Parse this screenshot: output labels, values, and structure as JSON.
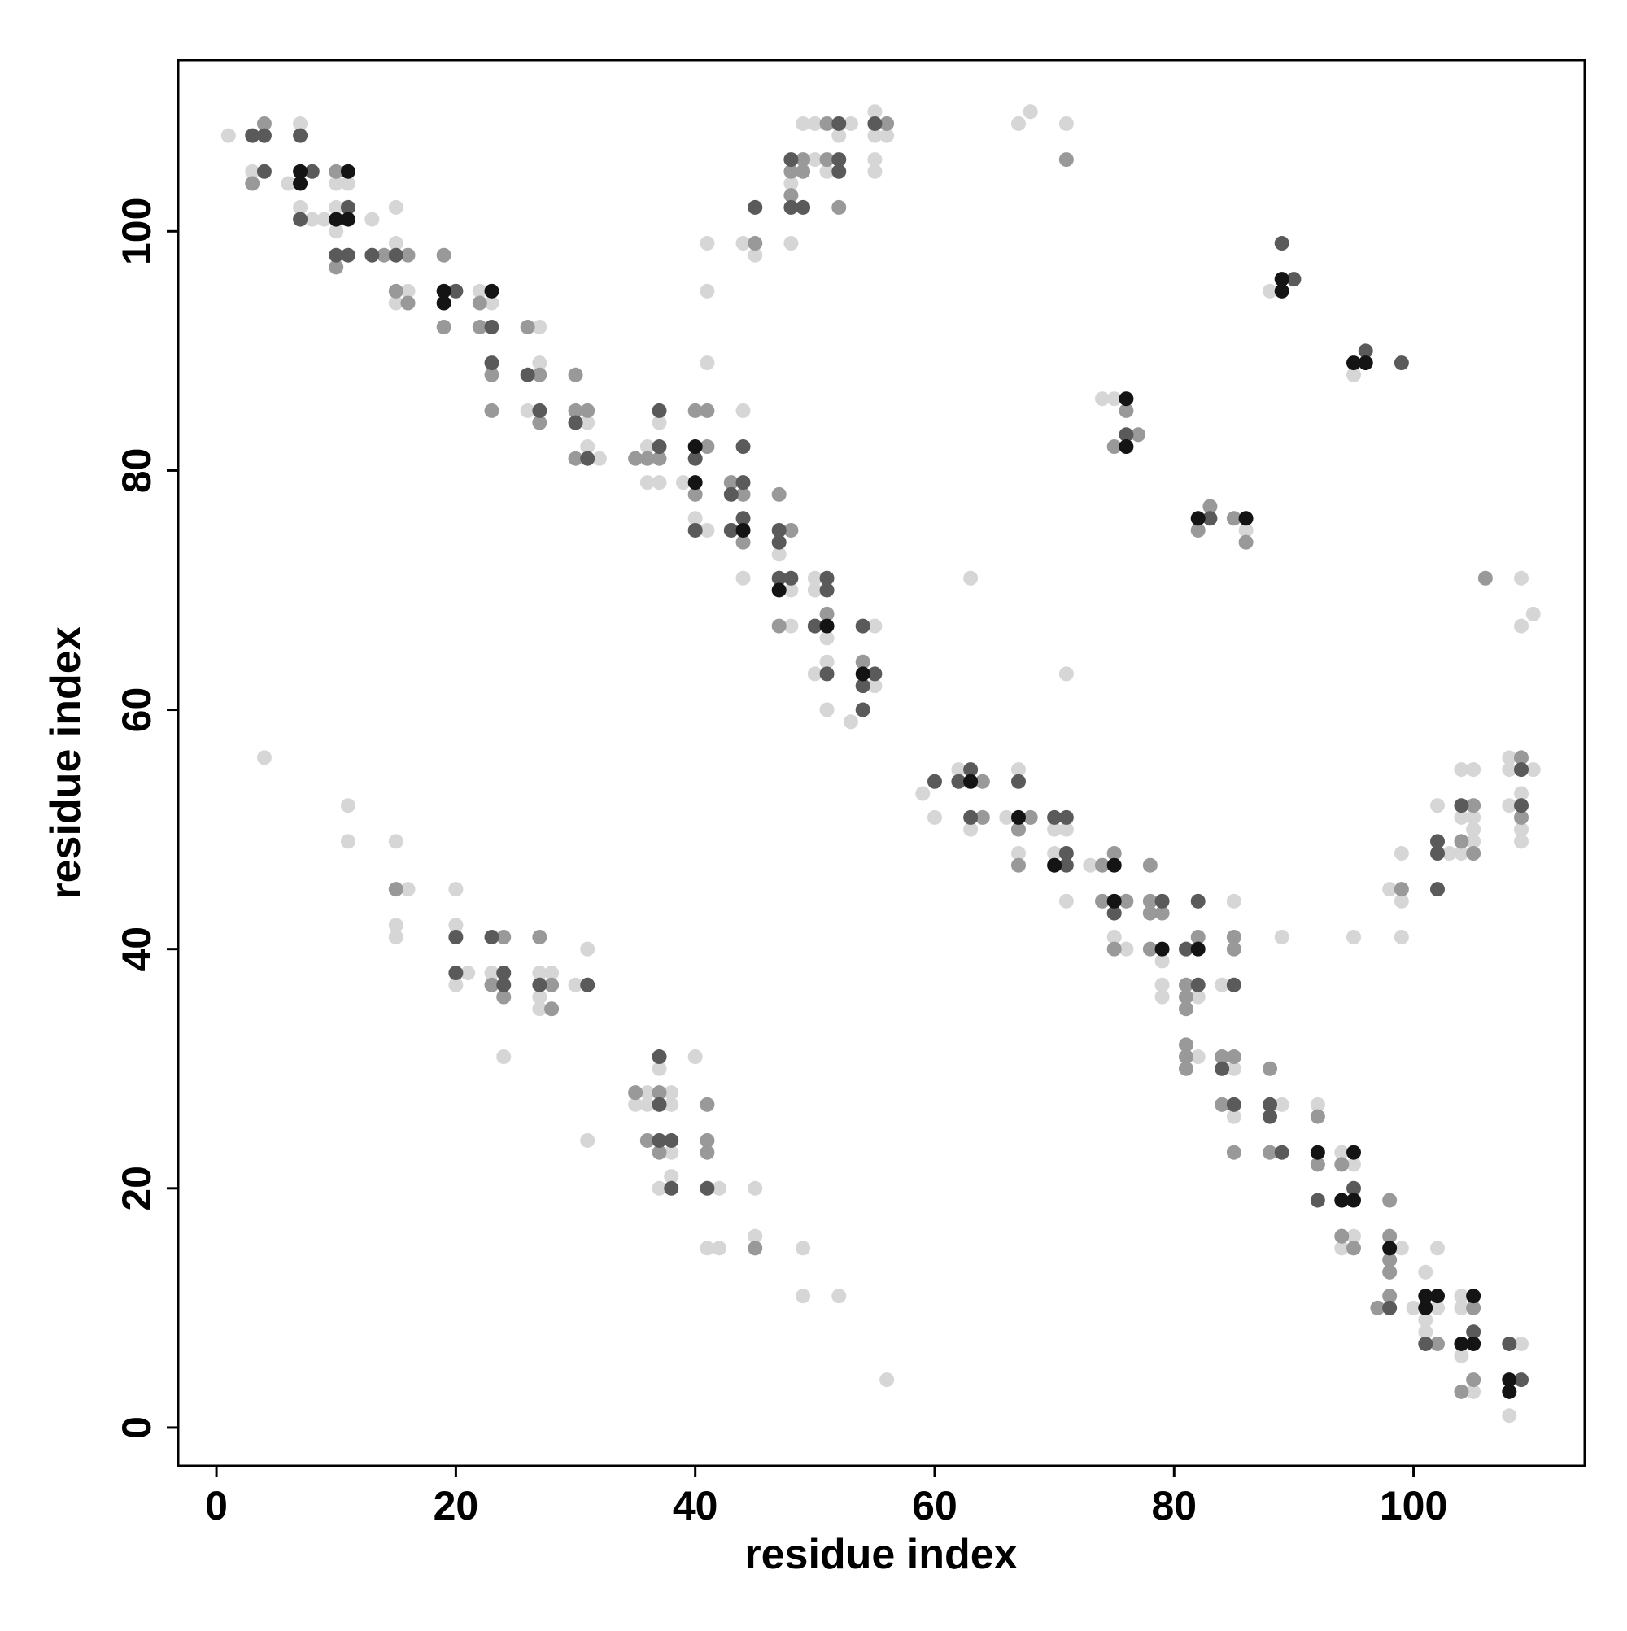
{
  "chart_data": {
    "type": "scatter",
    "xlabel": "residue index",
    "ylabel": "residue index",
    "xlim": [
      -3.2,
      114.3
    ],
    "ylim": [
      -3.2,
      114.3
    ],
    "xticks": [
      0,
      20,
      40,
      60,
      80,
      100
    ],
    "yticks": [
      0,
      20,
      40,
      60,
      80,
      100
    ],
    "grid": false,
    "series": [
      {
        "color": "#d6d6d6",
        "x": [
          1,
          3,
          6,
          7,
          7,
          8,
          9,
          10,
          11,
          10,
          10,
          13,
          15,
          15,
          15,
          16,
          22,
          23,
          27,
          27,
          26,
          31,
          31,
          32,
          36,
          37,
          36,
          37,
          39,
          40,
          41,
          44,
          44,
          47,
          48,
          48,
          50,
          50,
          51,
          51,
          50,
          51,
          53,
          55,
          55,
          41,
          41,
          41,
          44,
          45,
          48,
          48,
          49,
          50,
          50,
          53,
          51,
          52,
          55,
          55,
          56,
          55,
          55,
          67,
          68,
          71,
          88,
          95,
          74,
          75,
          86,
          63,
          71,
          109,
          110,
          109,
          59,
          60,
          62,
          63,
          66,
          67,
          67,
          70,
          71,
          70,
          71,
          73,
          75,
          76,
          79,
          79,
          79,
          82,
          82,
          84,
          85,
          85,
          85,
          89,
          92,
          94,
          95,
          95,
          94,
          99,
          100,
          102,
          101,
          102,
          101,
          101,
          104,
          104,
          104,
          105,
          109,
          108,
          95,
          89,
          98,
          99,
          99,
          99,
          102,
          103,
          104,
          105,
          104,
          105,
          105,
          104,
          105,
          108,
          108,
          110,
          109,
          108,
          109,
          109,
          4,
          11,
          11,
          15,
          16,
          15,
          15,
          20,
          20,
          21,
          20,
          23,
          24,
          27,
          28,
          27,
          27,
          30,
          31,
          31,
          36,
          38,
          35,
          36,
          38,
          37,
          38,
          38,
          37,
          40,
          42,
          45,
          45,
          41,
          42,
          49,
          49,
          52,
          56
        ],
        "values": [
          108,
          105,
          104,
          109,
          102,
          101,
          101,
          104,
          104,
          102,
          100,
          101,
          99,
          102,
          94,
          95,
          95,
          94,
          92,
          89,
          85,
          84,
          82,
          81,
          82,
          84,
          79,
          79,
          79,
          76,
          75,
          85,
          71,
          73,
          70,
          67,
          71,
          70,
          66,
          64,
          63,
          60,
          59,
          67,
          62,
          99,
          95,
          89,
          99,
          98,
          99,
          104,
          109,
          109,
          106,
          109,
          105,
          108,
          110,
          108,
          108,
          106,
          105,
          109,
          110,
          109,
          95,
          88,
          86,
          86,
          75,
          71,
          63,
          71,
          68,
          67,
          53,
          51,
          55,
          50,
          51,
          55,
          48,
          50,
          50,
          48,
          44,
          47,
          41,
          40,
          39,
          37,
          36,
          36,
          31,
          37,
          44,
          30,
          26,
          27,
          27,
          23,
          22,
          16,
          15,
          15,
          10,
          10,
          13,
          15,
          9,
          8,
          11,
          10,
          6,
          3,
          7,
          1,
          41,
          41,
          45,
          44,
          48,
          41,
          52,
          48,
          55,
          55,
          51,
          51,
          49,
          48,
          50,
          56,
          55,
          55,
          53,
          52,
          50,
          49,
          56,
          52,
          49,
          49,
          45,
          42,
          41,
          45,
          42,
          38,
          37,
          38,
          31,
          38,
          38,
          36,
          35,
          37,
          40,
          24,
          28,
          28,
          27,
          27,
          27,
          30,
          23,
          21,
          20,
          31,
          20,
          20,
          16,
          15,
          15,
          15,
          11,
          11,
          4
        ]
      },
      {
        "color": "#999999",
        "x": [
          4,
          3,
          10,
          10,
          14,
          16,
          15,
          16,
          19,
          19,
          22,
          22,
          23,
          23,
          26,
          27,
          27,
          30,
          30,
          31,
          30,
          35,
          36,
          37,
          40,
          40,
          41,
          41,
          43,
          44,
          44,
          47,
          48,
          47,
          51,
          54,
          45,
          48,
          48,
          49,
          49,
          51,
          51,
          52,
          56,
          71,
          76,
          77,
          75,
          83,
          82,
          85,
          86,
          106,
          64,
          64,
          68,
          67,
          67,
          74,
          75,
          74,
          76,
          75,
          78,
          78,
          78,
          79,
          78,
          82,
          81,
          81,
          81,
          81,
          81,
          81,
          85,
          85,
          84,
          85,
          84,
          85,
          88,
          88,
          92,
          92,
          94,
          94,
          95,
          98,
          98,
          98,
          98,
          97,
          98,
          102,
          105,
          105,
          104,
          99,
          105,
          104,
          105,
          109,
          109,
          15,
          24,
          23,
          24,
          27,
          28,
          28,
          35,
          37,
          36,
          37,
          41,
          41,
          41,
          45
        ],
        "values": [
          109,
          104,
          105,
          97,
          98,
          98,
          95,
          94,
          98,
          92,
          94,
          92,
          88,
          85,
          92,
          88,
          84,
          88,
          85,
          85,
          81,
          81,
          81,
          81,
          78,
          85,
          85,
          82,
          79,
          78,
          74,
          78,
          75,
          67,
          68,
          64,
          99,
          103,
          105,
          106,
          105,
          109,
          106,
          102,
          109,
          106,
          85,
          83,
          82,
          77,
          75,
          76,
          74,
          71,
          54,
          51,
          51,
          50,
          47,
          47,
          48,
          44,
          44,
          40,
          47,
          44,
          43,
          43,
          40,
          41,
          37,
          36,
          35,
          32,
          31,
          30,
          41,
          40,
          31,
          31,
          27,
          23,
          30,
          23,
          26,
          22,
          22,
          16,
          15,
          19,
          16,
          14,
          13,
          10,
          11,
          7,
          10,
          4,
          3,
          45,
          52,
          49,
          48,
          56,
          51,
          45,
          41,
          37,
          36,
          41,
          37,
          35,
          28,
          28,
          24,
          23,
          27,
          24,
          23,
          15
        ]
      },
      {
        "color": "#5a5a5a",
        "x": [
          3,
          4,
          4,
          8,
          7,
          7,
          11,
          10,
          11,
          13,
          15,
          20,
          23,
          23,
          26,
          27,
          30,
          31,
          37,
          37,
          40,
          40,
          43,
          44,
          44,
          43,
          44,
          47,
          47,
          47,
          48,
          51,
          51,
          50,
          51,
          54,
          55,
          54,
          54,
          45,
          48,
          49,
          48,
          52,
          52,
          52,
          55,
          89,
          90,
          96,
          99,
          76,
          83,
          60,
          62,
          63,
          63,
          67,
          70,
          71,
          71,
          71,
          75,
          79,
          81,
          82,
          82,
          85,
          84,
          85,
          88,
          88,
          89,
          92,
          95,
          98,
          101,
          105,
          108,
          109,
          102,
          102,
          102,
          104,
          109,
          109,
          20,
          20,
          23,
          24,
          24,
          27,
          31,
          37,
          37,
          37,
          38,
          38,
          41
        ],
        "values": [
          108,
          108,
          105,
          105,
          108,
          101,
          102,
          98,
          98,
          98,
          98,
          95,
          92,
          89,
          88,
          85,
          84,
          81,
          82,
          85,
          81,
          75,
          78,
          79,
          76,
          75,
          82,
          75,
          74,
          71,
          71,
          71,
          70,
          67,
          63,
          67,
          63,
          62,
          60,
          102,
          102,
          102,
          106,
          109,
          106,
          105,
          109,
          99,
          96,
          90,
          89,
          83,
          76,
          54,
          54,
          55,
          51,
          54,
          51,
          51,
          48,
          47,
          43,
          44,
          40,
          44,
          37,
          37,
          30,
          27,
          27,
          26,
          23,
          19,
          20,
          10,
          7,
          8,
          7,
          4,
          49,
          48,
          45,
          52,
          55,
          52,
          41,
          38,
          41,
          38,
          37,
          37,
          37,
          27,
          31,
          24,
          24,
          20,
          20
        ]
      },
      {
        "color": "#141414",
        "x": [
          7,
          7,
          11,
          10,
          11,
          19,
          19,
          23,
          40,
          40,
          44,
          47,
          51,
          54,
          89,
          89,
          95,
          96,
          76,
          76,
          82,
          86,
          63,
          67,
          70,
          75,
          75,
          79,
          82,
          92,
          95,
          94,
          95,
          98,
          101,
          102,
          101,
          105,
          104,
          105,
          108,
          108
        ],
        "values": [
          105,
          104,
          105,
          101,
          101,
          95,
          94,
          95,
          79,
          82,
          75,
          70,
          67,
          63,
          96,
          95,
          89,
          89,
          86,
          82,
          76,
          76,
          54,
          51,
          47,
          47,
          44,
          40,
          40,
          23,
          23,
          19,
          19,
          15,
          11,
          11,
          10,
          11,
          7,
          7,
          4,
          3
        ]
      }
    ]
  }
}
